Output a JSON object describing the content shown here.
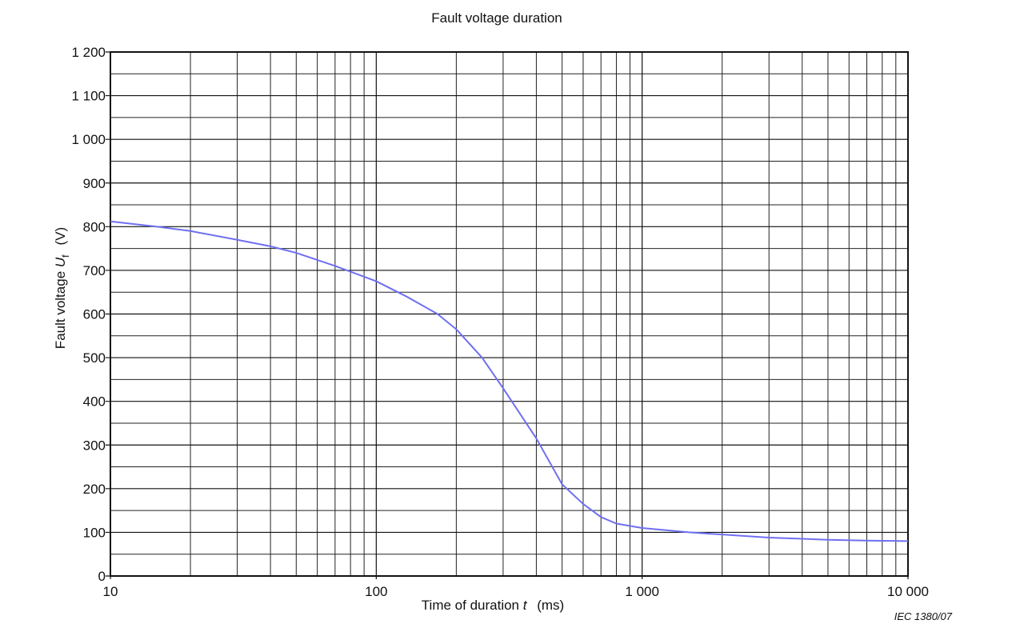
{
  "chart_data": {
    "type": "line",
    "title": "Fault voltage duration",
    "x_label": {
      "text": "Time of duration",
      "symbol": "t",
      "unit": "(ms)"
    },
    "y_label": {
      "text": "Fault voltage",
      "symbol": "U",
      "subscript": "f",
      "unit": "(V)"
    },
    "annotation": "IEC  1380/07",
    "x_scale": "log",
    "grid": true,
    "color": "#6f6ff2",
    "x": [
      10,
      15,
      20,
      30,
      40,
      50,
      70,
      100,
      130,
      170,
      200,
      250,
      300,
      400,
      500,
      600,
      700,
      800,
      1000,
      1500,
      2000,
      3000,
      5000,
      7000,
      10000
    ],
    "values": [
      812,
      800,
      790,
      770,
      755,
      740,
      710,
      675,
      640,
      600,
      565,
      500,
      430,
      315,
      210,
      165,
      135,
      120,
      110,
      100,
      95,
      88,
      83,
      81,
      80
    ],
    "xlim": [
      10,
      10000
    ],
    "ylim": [
      0,
      1200
    ],
    "xticks": [
      10,
      100,
      {
        "value": 1000,
        "label": "1 000"
      },
      {
        "value": 10000,
        "label": "10 000"
      }
    ],
    "yticks": [
      0,
      100,
      200,
      300,
      400,
      500,
      600,
      700,
      800,
      900,
      {
        "value": 1000,
        "label": "1 000"
      },
      {
        "value": 1100,
        "label": "1 100"
      },
      {
        "value": 1200,
        "label": "1 200"
      }
    ],
    "xminorticks": [
      20,
      30,
      40,
      50,
      60,
      70,
      80,
      90,
      200,
      300,
      400,
      500,
      600,
      700,
      800,
      900,
      2000,
      3000,
      4000,
      5000,
      6000,
      7000,
      8000,
      9000
    ],
    "yminorticks": [
      50,
      150,
      250,
      350,
      450,
      550,
      650,
      750,
      850,
      950,
      1050,
      1150
    ]
  }
}
